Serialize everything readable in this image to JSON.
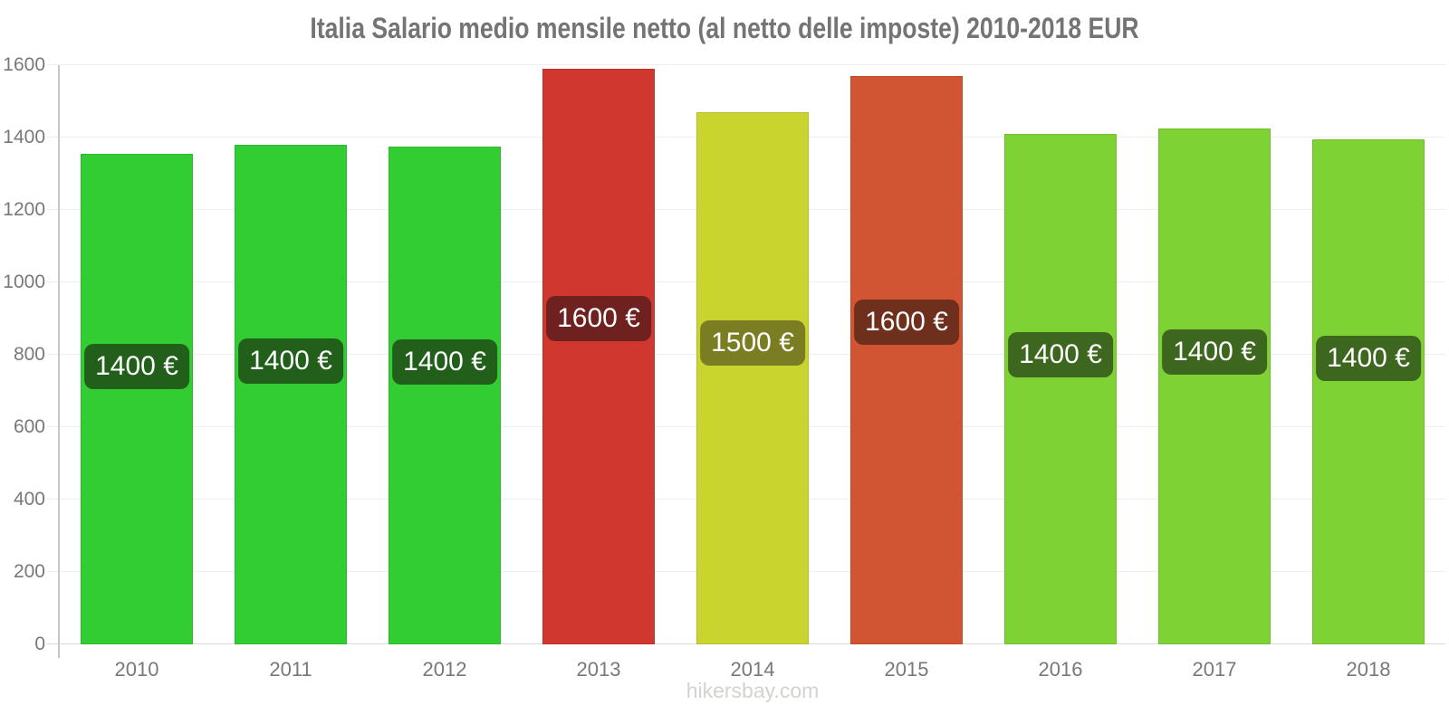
{
  "page": {
    "watermark": "hikersbay.com"
  },
  "colors": {
    "background": "#ffffff",
    "title_text": "#747474",
    "tick_text": "#787878",
    "gridline": "#efefef",
    "zero_line": "#d9d9d9",
    "axis_line": "#c6c6c6",
    "badge_text": "#ffffff",
    "watermark_text": "#d3d3ce"
  },
  "chart_data": {
    "type": "bar",
    "title": "Italia Salario medio mensile netto (al netto delle imposte) 2010-2018 EUR",
    "xlabel": "",
    "ylabel": "",
    "currency": "EUR",
    "grid": true,
    "legend": false,
    "ylim": [
      0,
      1600
    ],
    "yticks": [
      0,
      200,
      400,
      600,
      800,
      1000,
      1200,
      1400,
      1600
    ],
    "categories": [
      "2010",
      "2011",
      "2012",
      "2013",
      "2014",
      "2015",
      "2016",
      "2017",
      "2018"
    ],
    "values": [
      1355,
      1380,
      1375,
      1590,
      1470,
      1570,
      1410,
      1425,
      1395
    ],
    "bar_labels": [
      "1400 €",
      "1400 €",
      "1400 €",
      "1600 €",
      "1500 €",
      "1600 €",
      "1400 €",
      "1400 €",
      "1400 €"
    ],
    "bar_colors": [
      "#32cd32",
      "#32cd32",
      "#32cd32",
      "#d0372f",
      "#c9d42e",
      "#d15532",
      "#7fd233",
      "#7fd233",
      "#7fd233"
    ],
    "bar_border_colors": [
      "#2db82d",
      "#2db82d",
      "#2db82d",
      "#bc312a",
      "#b5bf29",
      "#bc4c2d",
      "#72bd2e",
      "#72bd2e",
      "#72bd2e"
    ],
    "label_bg_colors": [
      "#215f1b",
      "#215f1b",
      "#215f1b",
      "#6e211f",
      "#7b7d22",
      "#6e2f1d",
      "#3d661f",
      "#3d661f",
      "#3d661f"
    ]
  }
}
